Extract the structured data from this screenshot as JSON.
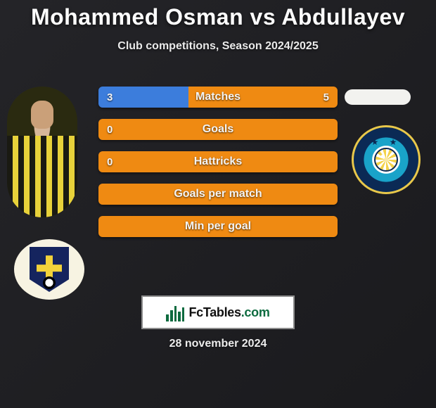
{
  "title": "Mohammed Osman vs Abdullayev",
  "subtitle": "Club competitions, Season 2024/2025",
  "date": "28 november 2024",
  "brand": {
    "name": "FcTables",
    "tld": ".com"
  },
  "colors": {
    "left_accent": "#3c7ddc",
    "right_accent": "#ef8a12",
    "bar_bg_fallback": "#ef8a12",
    "track": "#2a2a2f"
  },
  "icons": {
    "player_left": "player-photo",
    "club_left": "club-badge-left",
    "blank_right": "blank-pill",
    "club_right": "club-badge-right"
  },
  "stats": [
    {
      "label": "Matches",
      "left_value": "3",
      "right_value": "5",
      "left_pct": 37.5,
      "left_color": "#3c7ddc",
      "right_color": "#ef8a12",
      "show_left": true,
      "show_right": true
    },
    {
      "label": "Goals",
      "left_value": "0",
      "right_value": "",
      "left_pct": 0,
      "left_color": "#3c7ddc",
      "right_color": "#ef8a12",
      "show_left": true,
      "show_right": false
    },
    {
      "label": "Hattricks",
      "left_value": "0",
      "right_value": "",
      "left_pct": 0,
      "left_color": "#3c7ddc",
      "right_color": "#ef8a12",
      "show_left": true,
      "show_right": false
    },
    {
      "label": "Goals per match",
      "left_value": "",
      "right_value": "",
      "left_pct": 0,
      "left_color": "#3c7ddc",
      "right_color": "#ef8a12",
      "show_left": false,
      "show_right": false
    },
    {
      "label": "Min per goal",
      "left_value": "",
      "right_value": "",
      "left_pct": 0,
      "left_color": "#3c7ddc",
      "right_color": "#ef8a12",
      "show_left": false,
      "show_right": false
    }
  ]
}
